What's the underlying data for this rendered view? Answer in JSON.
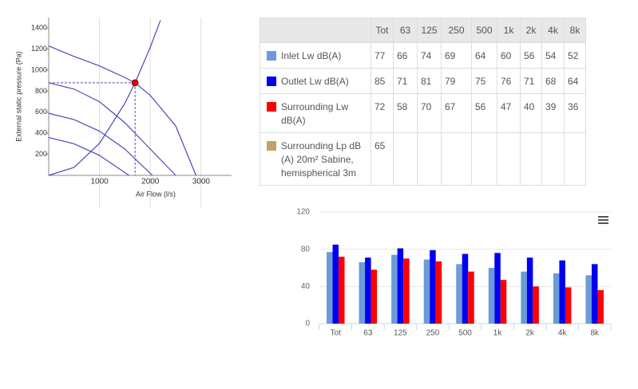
{
  "chart_data": [
    {
      "type": "line",
      "xlabel": "Air Flow (l/s)",
      "ylabel": "External static pressure (Pa)",
      "xlim": [
        0,
        3600
      ],
      "ylim": [
        0,
        1500
      ],
      "xticks": [
        1000,
        2000,
        3000
      ],
      "yticks": [
        200,
        400,
        600,
        800,
        1000,
        1200,
        1400
      ],
      "grid": true,
      "series": [
        {
          "color": "#4a4ab8",
          "x": [
            0,
            500,
            1000,
            1500,
            1700,
            2000,
            2500,
            2900
          ],
          "values": [
            1230,
            1130,
            1040,
            930,
            880,
            760,
            470,
            0
          ]
        },
        {
          "color": "#4a4ab8",
          "x": [
            0,
            500,
            1000,
            1500,
            2000,
            2500
          ],
          "values": [
            880,
            820,
            700,
            500,
            250,
            0
          ]
        },
        {
          "color": "#4a4ab8",
          "x": [
            0,
            500,
            1000,
            1500,
            2040
          ],
          "values": [
            590,
            530,
            420,
            250,
            0
          ]
        },
        {
          "color": "#4a4ab8",
          "x": [
            0,
            500,
            1000,
            1580
          ],
          "values": [
            360,
            300,
            190,
            0
          ]
        },
        {
          "color": "#4a4ab8",
          "x": [
            0,
            500,
            1000,
            1500,
            1700,
            2000,
            2200
          ],
          "values": [
            0,
            76,
            304,
            685,
            880,
            1218,
            1474
          ]
        }
      ],
      "operating_point": {
        "x": 1700,
        "y": 880,
        "color": "#e00000"
      }
    },
    {
      "type": "bar",
      "categories": [
        "Tot",
        "63",
        "125",
        "250",
        "500",
        "1k",
        "2k",
        "4k",
        "8k"
      ],
      "ylim": [
        0,
        120
      ],
      "yticks": [
        0,
        40,
        80,
        120
      ],
      "grid": true,
      "series": [
        {
          "color": "#6b9bd8",
          "values": [
            77,
            66,
            74,
            69,
            64,
            60,
            56,
            54,
            52
          ]
        },
        {
          "color": "#0000f0",
          "values": [
            85,
            71,
            81,
            79,
            75,
            76,
            71,
            68,
            64
          ]
        },
        {
          "color": "#ff0000",
          "values": [
            72,
            58,
            70,
            67,
            56,
            47,
            40,
            39,
            36
          ]
        }
      ]
    }
  ],
  "table": {
    "columns": [
      "Tot",
      "63",
      "125",
      "250",
      "500",
      "1k",
      "2k",
      "4k",
      "8k"
    ],
    "rows": [
      {
        "color": "#6b9bd8",
        "label": "Inlet Lw dB(A)",
        "values": [
          77,
          66,
          74,
          69,
          64,
          60,
          56,
          54,
          52
        ]
      },
      {
        "color": "#0000f0",
        "label": "Outlet Lw dB(A)",
        "values": [
          85,
          71,
          81,
          79,
          75,
          76,
          71,
          68,
          64
        ]
      },
      {
        "color": "#ff0000",
        "label": "Surrounding Lw dB(A)",
        "values": [
          72,
          58,
          70,
          67,
          56,
          47,
          40,
          39,
          36
        ]
      },
      {
        "color": "#c4a064",
        "label": "Surrounding Lp dB (A) 20m² Sabine, hemispherical 3m",
        "values": [
          65
        ]
      }
    ]
  }
}
